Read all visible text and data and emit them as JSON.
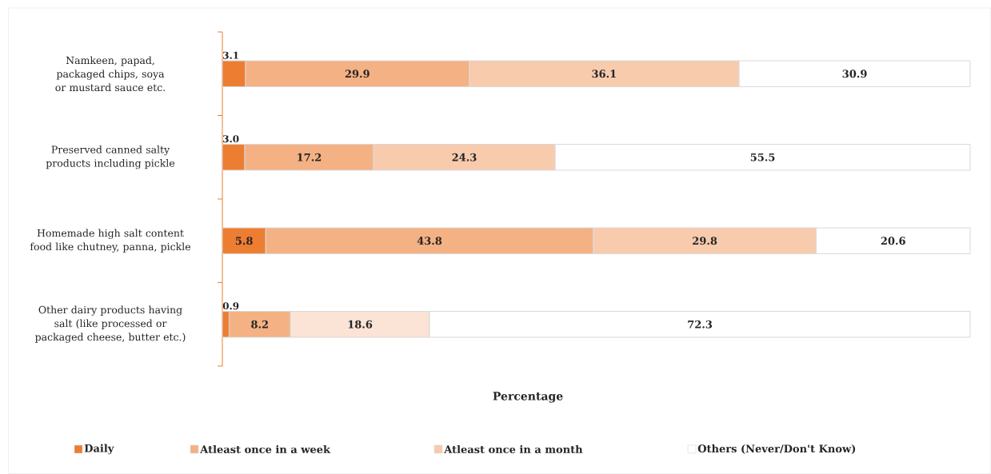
{
  "chart_data": {
    "type": "bar",
    "orientation": "horizontal",
    "stacked": true,
    "xlabel": "Percentage",
    "categories": [
      "Namkeen, papad, packaged chips, soya or mustard  sauce etc.",
      "Preserved canned salty products including pickle",
      "Homemade high salt content food like chutney, panna, pickle",
      "Other dairy products having salt (like processed or packaged cheese, butter etc.)"
    ],
    "xlim": [
      0,
      100
    ],
    "legend": "bottom",
    "series": [
      {
        "name": "Daily",
        "color": "#ed7d31",
        "values": [
          3.1,
          3.0,
          5.8,
          0.9
        ],
        "value_labels": [
          "3.1",
          "3.0",
          "5.8",
          "0.9"
        ]
      },
      {
        "name": "Atleast once in a week",
        "color": "#f4b183",
        "values": [
          29.9,
          17.2,
          43.8,
          8.2
        ],
        "value_labels": [
          "29.9",
          "17.2",
          "43.8",
          "8.2"
        ]
      },
      {
        "name": "Atleast once in a month",
        "color": "#f8cbad",
        "colors": [
          "#f8cbad",
          "#f8cbad",
          "#f8cbad",
          "#fbe3d6"
        ],
        "values": [
          36.1,
          24.3,
          29.8,
          18.6
        ],
        "value_labels": [
          "36.1",
          "24.3",
          "29.8",
          "18.6"
        ]
      },
      {
        "name": "Others (Never/Don't Know)",
        "color": "#ffffff",
        "values": [
          30.9,
          55.5,
          20.6,
          72.3
        ],
        "value_labels": [
          "30.9",
          "55.5",
          "20.6",
          "72.3"
        ]
      }
    ]
  }
}
